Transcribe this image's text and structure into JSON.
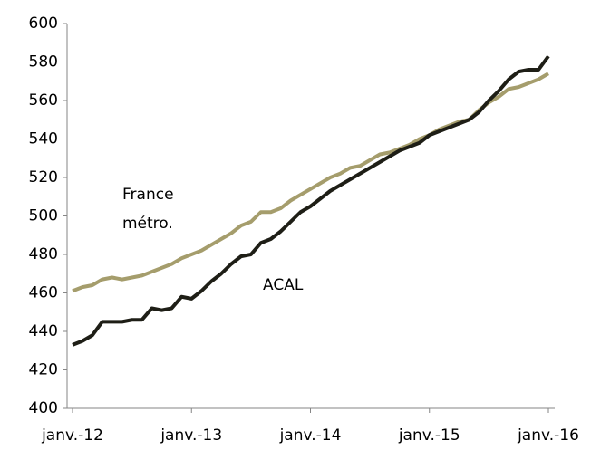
{
  "chart_data": {
    "type": "line",
    "categories": [
      "janv.-12",
      null,
      null,
      null,
      null,
      null,
      null,
      null,
      null,
      null,
      null,
      null,
      "janv.-13",
      null,
      null,
      null,
      null,
      null,
      null,
      null,
      null,
      null,
      null,
      null,
      "janv.-14",
      null,
      null,
      null,
      null,
      null,
      null,
      null,
      null,
      null,
      null,
      null,
      "janv.-15",
      null,
      null,
      null,
      null,
      null,
      null,
      null,
      null,
      null,
      null,
      null,
      "janv.-16"
    ],
    "series": [
      {
        "name": "France métro.",
        "color": "#a59d6c",
        "label_lines": [
          "France",
          "métro."
        ],
        "values": [
          461,
          463,
          464,
          467,
          468,
          467,
          468,
          469,
          471,
          473,
          475,
          478,
          480,
          482,
          485,
          488,
          491,
          495,
          497,
          502,
          502,
          504,
          508,
          511,
          514,
          517,
          520,
          522,
          525,
          526,
          529,
          532,
          533,
          535,
          537,
          540,
          542,
          545,
          547,
          549,
          550,
          555,
          559,
          562,
          566,
          567,
          569,
          571,
          574
        ]
      },
      {
        "name": "ACAL",
        "color": "#1e1e16",
        "label_lines": [
          "ACAL"
        ],
        "values": [
          433,
          435,
          438,
          445,
          445,
          445,
          446,
          446,
          452,
          451,
          452,
          458,
          457,
          461,
          466,
          470,
          475,
          479,
          480,
          486,
          488,
          492,
          497,
          502,
          505,
          509,
          513,
          516,
          519,
          522,
          525,
          528,
          531,
          534,
          536,
          538,
          542,
          544,
          546,
          548,
          550,
          554,
          560,
          565,
          571,
          575,
          576,
          576,
          583
        ]
      }
    ],
    "ylim": [
      400,
      600
    ],
    "yticks": [
      400,
      420,
      440,
      460,
      480,
      500,
      520,
      540,
      560,
      580,
      600
    ],
    "grid": false
  }
}
